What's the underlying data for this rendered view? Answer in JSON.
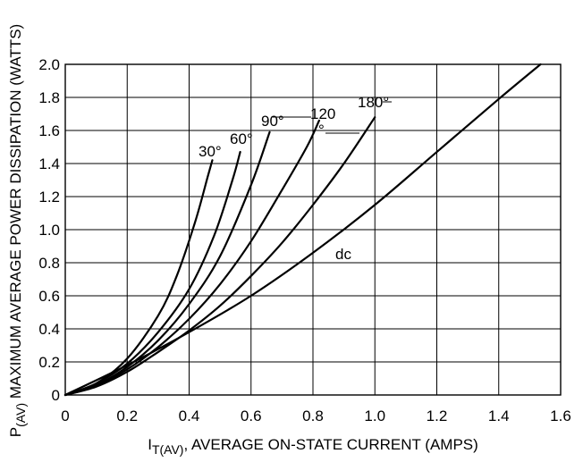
{
  "chart_data": {
    "type": "line",
    "title": "",
    "xlabel": {
      "main": "I",
      "sub": "T(AV)",
      "rest": ", AVERAGE ON-STATE CURRENT (AMPS)"
    },
    "ylabel": {
      "main": "P",
      "sub": "(AV)",
      "rest": " MAXIMUM AVERAGE POWER DISSIPATION (WATTS)"
    },
    "xlim": [
      0,
      1.6
    ],
    "ylim": [
      0,
      2.0
    ],
    "xticks": [
      "0",
      "0.2",
      "0.4",
      "0.6",
      "0.8",
      "1.0",
      "1.2",
      "1.4",
      "1.6"
    ],
    "yticks": [
      "0",
      "0.2",
      "0.4",
      "0.6",
      "0.8",
      "1.0",
      "1.2",
      "1.4",
      "1.6",
      "1.8",
      "2.0"
    ],
    "grid": true,
    "series": [
      {
        "name": "30°",
        "label": "30°",
        "x": [
          0,
          0.1,
          0.2,
          0.3,
          0.36,
          0.42,
          0.46,
          0.475
        ],
        "y": [
          0,
          0.07,
          0.22,
          0.48,
          0.72,
          1.05,
          1.32,
          1.42
        ]
      },
      {
        "name": "60°",
        "label": "60°",
        "x": [
          0,
          0.1,
          0.2,
          0.3,
          0.4,
          0.48,
          0.54,
          0.565
        ],
        "y": [
          0,
          0.07,
          0.19,
          0.38,
          0.64,
          0.96,
          1.3,
          1.47
        ]
      },
      {
        "name": "90°",
        "label": "90°",
        "x": [
          0,
          0.1,
          0.2,
          0.3,
          0.4,
          0.5,
          0.6,
          0.66
        ],
        "y": [
          0,
          0.06,
          0.17,
          0.33,
          0.55,
          0.84,
          1.27,
          1.59
        ]
      },
      {
        "name": "120",
        "label": "120",
        "x": [
          0,
          0.1,
          0.2,
          0.3,
          0.4,
          0.5,
          0.6,
          0.7,
          0.78,
          0.82
        ],
        "y": [
          0,
          0.055,
          0.155,
          0.29,
          0.46,
          0.67,
          0.93,
          1.24,
          1.5,
          1.66
        ]
      },
      {
        "name": "180°",
        "label": "180°",
        "x": [
          0,
          0.1,
          0.2,
          0.3,
          0.4,
          0.5,
          0.6,
          0.7,
          0.8,
          0.9,
          1.0
        ],
        "y": [
          0,
          0.05,
          0.14,
          0.26,
          0.39,
          0.54,
          0.72,
          0.92,
          1.15,
          1.4,
          1.68
        ]
      },
      {
        "name": "dc",
        "label": "dc",
        "x": [
          0,
          0.2,
          0.4,
          0.6,
          0.8,
          1.0,
          1.2,
          1.4,
          1.535
        ],
        "y": [
          0,
          0.18,
          0.38,
          0.6,
          0.86,
          1.15,
          1.47,
          1.79,
          2.0
        ]
      }
    ],
    "annotations": [
      {
        "text": "30°",
        "series": "30°"
      },
      {
        "text": "60°",
        "series": "60°"
      },
      {
        "text": "90°",
        "series": "90°"
      },
      {
        "text": "120",
        "series": "120"
      },
      {
        "text": "°",
        "series": "120"
      },
      {
        "text": "180°",
        "series": "180°"
      },
      {
        "text": "dc",
        "series": "dc"
      }
    ]
  }
}
